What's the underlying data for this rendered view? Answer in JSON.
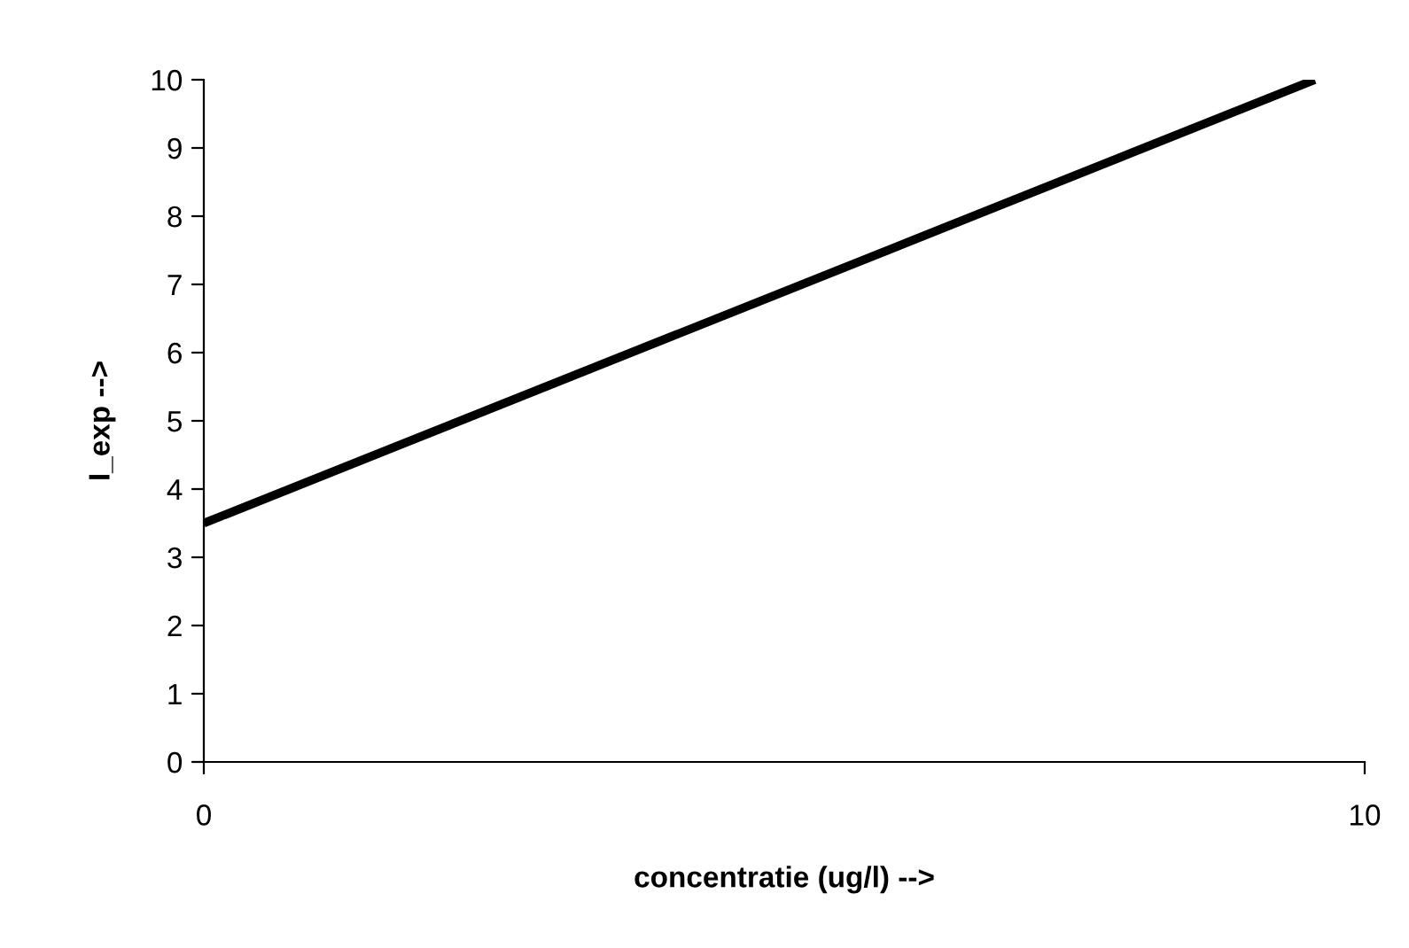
{
  "chart_data": {
    "type": "line",
    "xlabel": "concentratie (ug/l) -->",
    "ylabel": "I_exp -->",
    "x": [
      0,
      9.57
    ],
    "series": [
      {
        "color": "#000000",
        "values": [
          3.5,
          10
        ]
      }
    ],
    "xlim": [
      0,
      10
    ],
    "xticks": [
      0,
      10
    ],
    "ylim": [
      0,
      10
    ],
    "yticks": [
      0,
      1,
      2,
      3,
      4,
      5,
      6,
      7,
      8,
      9,
      10
    ],
    "grid": false,
    "legend": false,
    "marker": "none",
    "line_style": "solid"
  }
}
